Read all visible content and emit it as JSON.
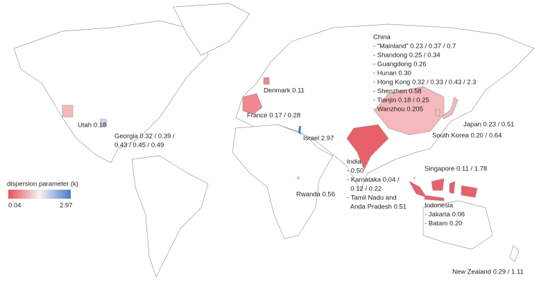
{
  "legend": {
    "title": "dispersion parameter (k)",
    "min": 0.04,
    "max": 2.97
  },
  "annotations": [
    {
      "lines": [
        "China",
        "- “Mainland” 0.23 / 0.37 / 0.7",
        "- Shandong 0.25 / 0.34",
        "- Guangdong 0.26",
        "- Hunan 0.30",
        "- Hong Kong 0.32 / 0.33 / 0.43 / 2.3",
        "- Shenzhen 0.58",
        "- Tianjin 0.18 / 0.25",
        "- Wanzhou 0.205"
      ]
    },
    {
      "lines": [
        "Denmark 0.11"
      ]
    },
    {
      "lines": [
        "Utah 0.18"
      ]
    },
    {
      "lines": [
        "France 0.17 / 0.28"
      ]
    },
    {
      "lines": [
        "Georgia 0.32 / 0.39 /",
        "0.43 / 0.45 / 0.49"
      ]
    },
    {
      "lines": [
        "Israel 2.97"
      ]
    },
    {
      "lines": [
        "Japan 0.23 / 0.51"
      ]
    },
    {
      "lines": [
        "South Korea 0.20 / 0.64"
      ]
    },
    {
      "lines": [
        "India",
        "- 0.50",
        "- Karnataka 0.04 /",
        "  0.12 / 0.22",
        "- Tamil Nadu and",
        "  Anda Pradesh 0.51"
      ]
    },
    {
      "lines": [
        "Singapore 0.11 / 1.78"
      ]
    },
    {
      "lines": [
        "Rwanda 0.56"
      ]
    },
    {
      "lines": [
        "Indonesia",
        "- Jakarta 0.06",
        "- Batam 0.20"
      ]
    },
    {
      "lines": [
        "New Zealand 0.29 / 1.11"
      ]
    }
  ]
}
